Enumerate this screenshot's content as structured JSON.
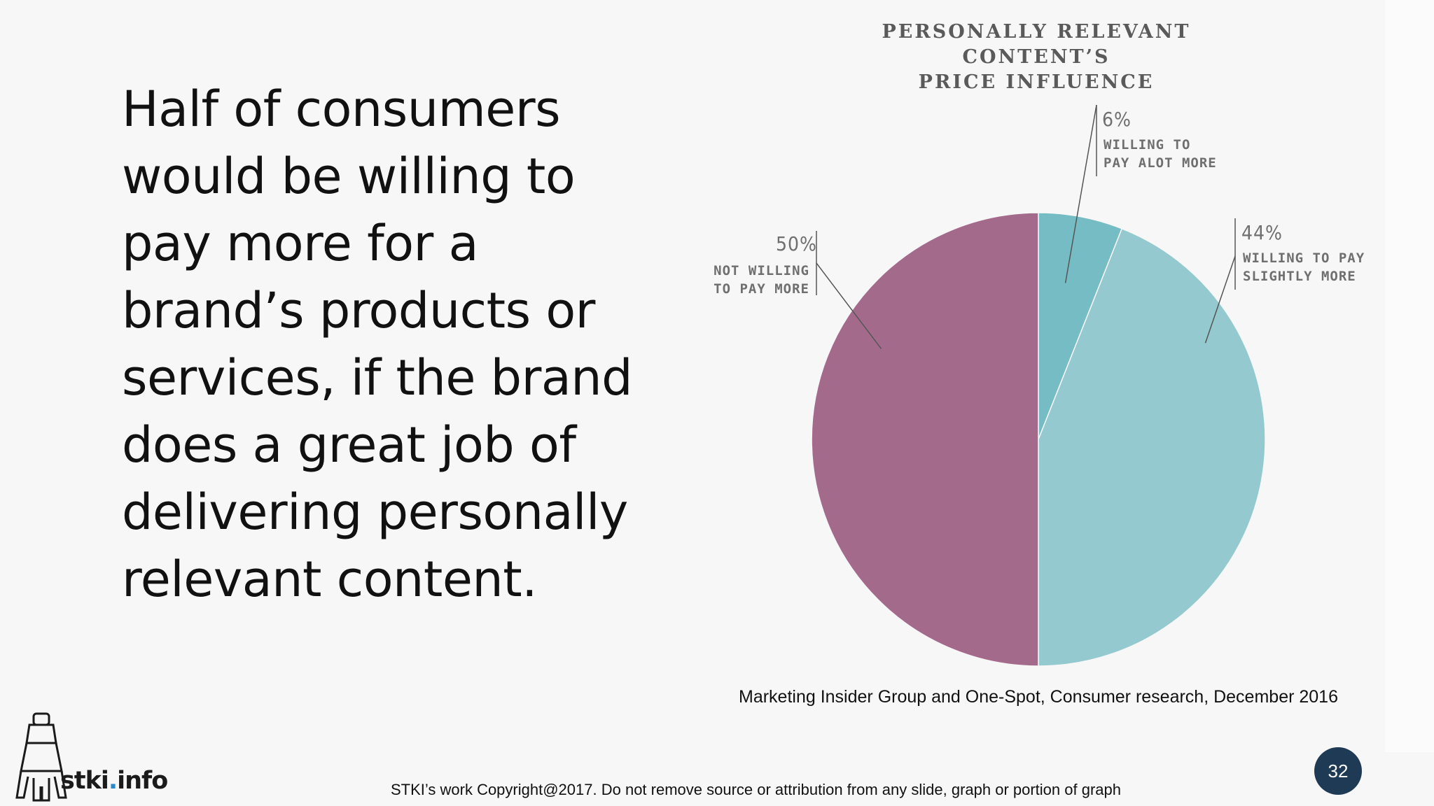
{
  "slide": {
    "headline_lines": [
      "Half of consumers",
      "would be willing to",
      "pay more for a",
      "brand’s products or",
      "services, if the brand",
      "does a great job of",
      "delivering personally",
      "relevant content."
    ],
    "source": "Marketing Insider Group and One-Spot, Consumer research, December 2016",
    "footer": "STKI’s work Copyright@2017. Do not remove source or attribution from any slide, graph or portion of graph",
    "page_number": "32",
    "logo": {
      "text_main": "stki",
      "text_dot": ".",
      "text_tld": "info"
    }
  },
  "chart_data": {
    "type": "pie",
    "title_lines": [
      "PERSONALLY RELEVANT CONTENT’S",
      "PRICE INFLUENCE"
    ],
    "slices": [
      {
        "name_lines": [
          "WILLING TO",
          "PAY ALOT MORE"
        ],
        "value": 6,
        "label": "6%",
        "color": "#76bcc4"
      },
      {
        "name_lines": [
          "WILLING TO PAY",
          "SLIGHTLY MORE"
        ],
        "value": 44,
        "label": "44%",
        "color": "#94c9cf"
      },
      {
        "name_lines": [
          "NOT WILLING",
          "TO PAY MORE"
        ],
        "value": 50,
        "label": "50%",
        "color": "#a46a8b"
      }
    ],
    "start_angle_deg": 0,
    "direction": "clockwise"
  }
}
